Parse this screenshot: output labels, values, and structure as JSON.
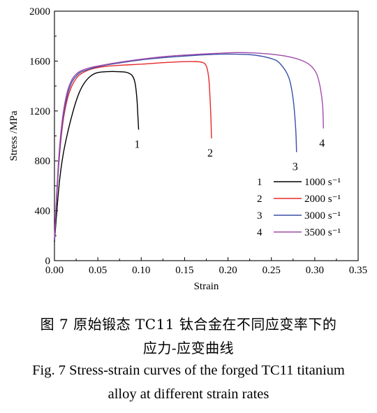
{
  "chart_data": {
    "type": "line",
    "xlabel": "Strain",
    "ylabel": "Stress /MPa",
    "xlim": [
      0,
      0.35
    ],
    "ylim": [
      0,
      2000
    ],
    "xticks": [
      "0.00",
      "0.05",
      "0.10",
      "0.15",
      "0.20",
      "0.25",
      "0.30",
      "0.35"
    ],
    "yticks": [
      "0",
      "400",
      "800",
      "1200",
      "1600",
      "2000"
    ],
    "grid": false,
    "legend_position": "bottom-right",
    "series": [
      {
        "name": "1000 s⁻¹",
        "label": "1",
        "color": "#000000",
        "x": [
          0.0,
          0.003,
          0.006,
          0.01,
          0.015,
          0.02,
          0.025,
          0.03,
          0.035,
          0.04,
          0.045,
          0.05,
          0.06,
          0.07,
          0.08,
          0.085,
          0.09,
          0.093,
          0.095,
          0.096,
          0.097
        ],
        "y": [
          150,
          420,
          650,
          850,
          1020,
          1160,
          1280,
          1370,
          1430,
          1470,
          1495,
          1508,
          1515,
          1516,
          1513,
          1505,
          1480,
          1420,
          1300,
          1180,
          1050
        ]
      },
      {
        "name": "2000 s⁻¹",
        "label": "2",
        "color": "#e8282b",
        "x": [
          0.0,
          0.003,
          0.006,
          0.01,
          0.015,
          0.02,
          0.025,
          0.03,
          0.04,
          0.05,
          0.06,
          0.08,
          0.1,
          0.12,
          0.14,
          0.16,
          0.17,
          0.175,
          0.178,
          0.18,
          0.181
        ],
        "y": [
          170,
          560,
          860,
          1120,
          1300,
          1400,
          1460,
          1495,
          1530,
          1548,
          1558,
          1568,
          1575,
          1585,
          1593,
          1596,
          1590,
          1560,
          1450,
          1200,
          980
        ]
      },
      {
        "name": "3000 s⁻¹",
        "label": "3",
        "color": "#3a4fa8",
        "x": [
          0.0,
          0.003,
          0.006,
          0.01,
          0.015,
          0.02,
          0.025,
          0.03,
          0.04,
          0.05,
          0.07,
          0.1,
          0.13,
          0.16,
          0.19,
          0.21,
          0.23,
          0.25,
          0.26,
          0.27,
          0.275,
          0.278,
          0.279
        ],
        "y": [
          160,
          560,
          880,
          1150,
          1330,
          1430,
          1480,
          1510,
          1535,
          1555,
          1580,
          1610,
          1630,
          1645,
          1655,
          1655,
          1648,
          1620,
          1580,
          1470,
          1300,
          1060,
          870
        ]
      },
      {
        "name": "3500 s⁻¹",
        "label": "4",
        "color": "#a24aa8",
        "x": [
          0.0,
          0.003,
          0.006,
          0.01,
          0.015,
          0.02,
          0.025,
          0.03,
          0.04,
          0.05,
          0.07,
          0.1,
          0.13,
          0.16,
          0.19,
          0.21,
          0.23,
          0.25,
          0.27,
          0.285,
          0.295,
          0.302,
          0.306,
          0.309,
          0.31
        ],
        "y": [
          175,
          600,
          920,
          1180,
          1360,
          1450,
          1495,
          1520,
          1545,
          1560,
          1585,
          1615,
          1638,
          1652,
          1663,
          1668,
          1665,
          1655,
          1635,
          1605,
          1565,
          1500,
          1400,
          1250,
          1060
        ]
      }
    ]
  },
  "caption": {
    "cn_line1": "图 7    原始锻态 TC11 钛合金在不同应变率下的",
    "cn_line2": "应力-应变曲线",
    "en_line1": "Fig. 7    Stress-strain curves of the forged TC11 titanium",
    "en_line2": "alloy at different strain rates"
  }
}
